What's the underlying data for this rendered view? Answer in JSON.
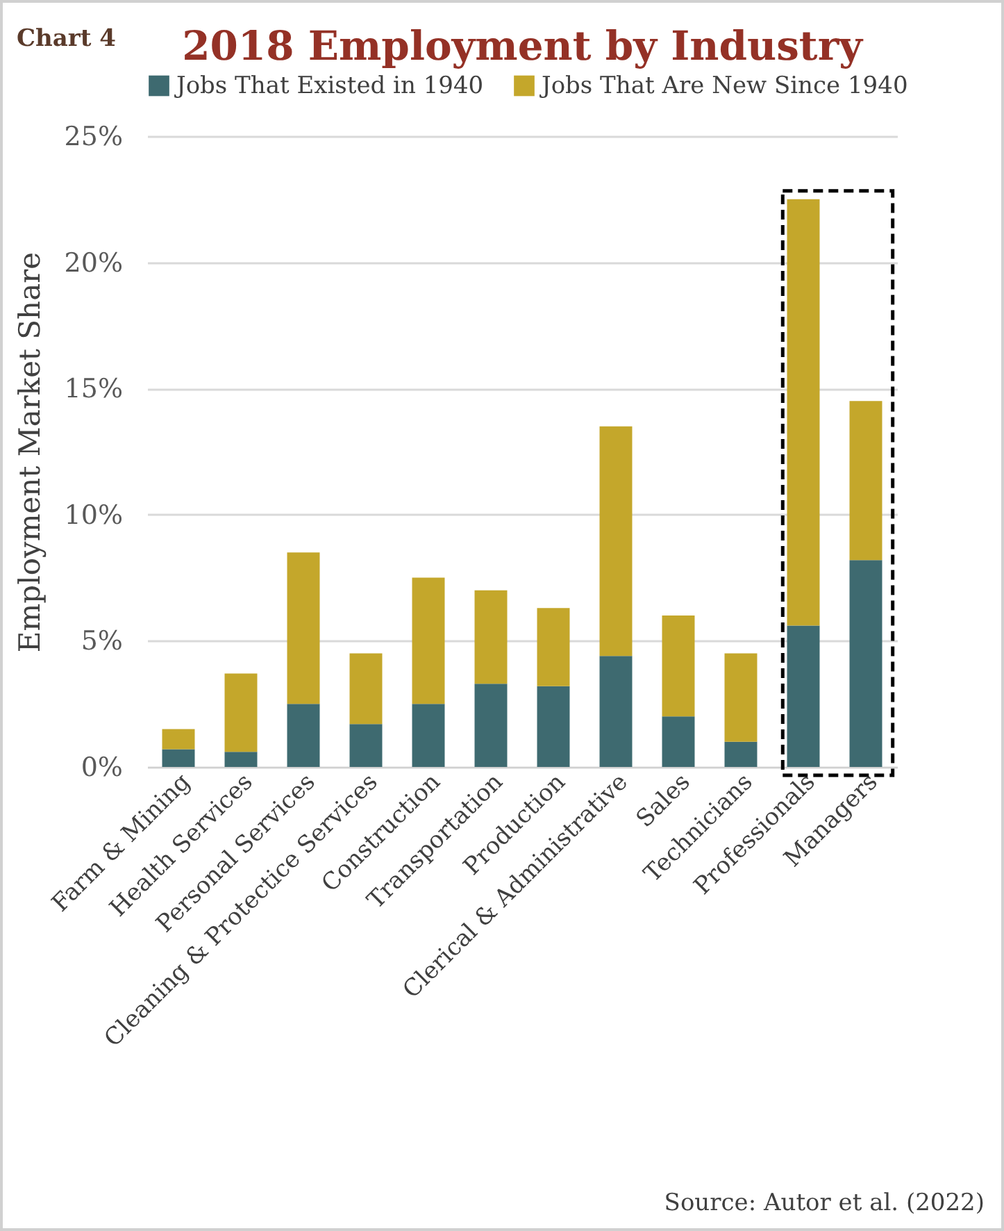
{
  "chart_data": {
    "type": "bar",
    "title": "2018 Employment by Industry",
    "ylabel": "Employment Market Share",
    "categories": [
      "Farm & Mining",
      "Health Services",
      "Personal Services",
      "Cleaning & Protectice Services",
      "Construction",
      "Transportation",
      "Production",
      "Clerical & Administrative",
      "Sales",
      "Technicians",
      "Professionals",
      "Managers"
    ],
    "series": [
      {
        "name": "Jobs That Existed in 1940",
        "color": "#3e6a70",
        "values": [
          0.7,
          0.6,
          2.5,
          1.7,
          2.5,
          3.3,
          3.2,
          4.4,
          2.0,
          1.0,
          5.6,
          8.2
        ]
      },
      {
        "name": "Jobs That Are New Since 1940",
        "color": "#c4a72b",
        "values": [
          0.8,
          3.1,
          6.0,
          2.8,
          5.0,
          3.7,
          3.1,
          9.1,
          4.0,
          3.5,
          16.9,
          6.3
        ]
      }
    ],
    "stacked": true,
    "ylim": [
      0,
      25
    ],
    "yticks": [
      {
        "value": 0,
        "label": "0%"
      },
      {
        "value": 5,
        "label": "5%"
      },
      {
        "value": 10,
        "label": "10%"
      },
      {
        "value": 15,
        "label": "15%"
      },
      {
        "value": 20,
        "label": "20%"
      },
      {
        "value": 25,
        "label": "25%"
      }
    ],
    "grid": "y",
    "legend": "top",
    "annotations": [
      "Chart 4",
      "Source: Autor et al. (2022)"
    ]
  }
}
